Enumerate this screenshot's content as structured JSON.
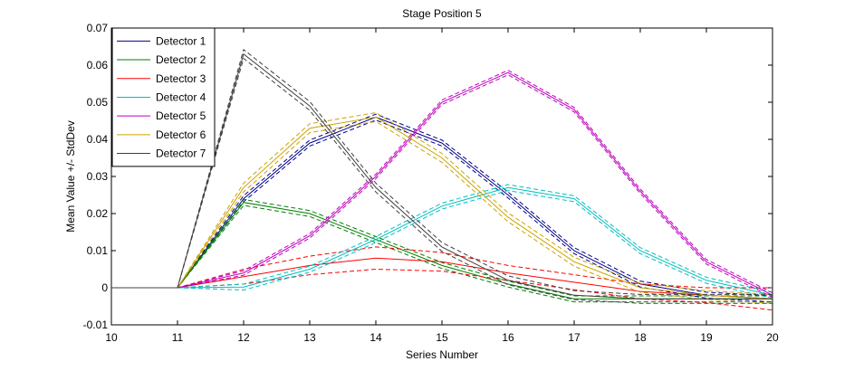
{
  "chart_data": {
    "type": "line",
    "title": "Stage Position 5",
    "xlabel": "Series Number",
    "ylabel": "Mean Value +/- StdDev",
    "xlim": [
      10,
      20
    ],
    "ylim": [
      -0.01,
      0.07
    ],
    "xticks": [
      "10",
      "11",
      "12",
      "13",
      "14",
      "15",
      "16",
      "17",
      "18",
      "19",
      "20"
    ],
    "yticks": [
      "-0.01",
      "0",
      "0.01",
      "0.02",
      "0.03",
      "0.04",
      "0.05",
      "0.06",
      "0.07"
    ],
    "grid": false,
    "legend_position": "top-left",
    "x": [
      10,
      11,
      12,
      13,
      14,
      15,
      16,
      17,
      18,
      19,
      20
    ],
    "series": [
      {
        "name": "Detector 1",
        "color": "#00008b",
        "mean": [
          0,
          0,
          0.024,
          0.039,
          0.046,
          0.039,
          0.025,
          0.01,
          0.001,
          -0.002,
          -0.003
        ],
        "std": [
          0,
          0,
          0.0008,
          0.0008,
          0.0008,
          0.0008,
          0.0008,
          0.0008,
          0.0008,
          0.0008,
          0.0008
        ]
      },
      {
        "name": "Detector 2",
        "color": "#007f00",
        "mean": [
          0,
          0,
          0.023,
          0.02,
          0.013,
          0.006,
          0.001,
          -0.003,
          -0.003,
          -0.003,
          -0.003
        ],
        "std": [
          0,
          0,
          0.0008,
          0.0008,
          0.0008,
          0.0008,
          0.0008,
          0.0008,
          0.0008,
          0.0008,
          0.0008
        ]
      },
      {
        "name": "Detector 3",
        "color": "#ff0000",
        "mean": [
          0,
          0,
          0.003,
          0.006,
          0.008,
          0.007,
          0.004,
          0.0015,
          -0.001,
          -0.002,
          -0.003
        ],
        "std": [
          0,
          0,
          0.002,
          0.0025,
          0.003,
          0.0025,
          0.002,
          0.002,
          0.002,
          0.002,
          0.003
        ]
      },
      {
        "name": "Detector 4",
        "color": "#00bfbf",
        "mean": [
          0,
          0,
          0.0002,
          0.005,
          0.013,
          0.022,
          0.027,
          0.024,
          0.01,
          0.002,
          -0.002
        ],
        "std": [
          0,
          0,
          0.0008,
          0.0008,
          0.0008,
          0.0008,
          0.0008,
          0.0008,
          0.0008,
          0.0008,
          0.0008
        ]
      },
      {
        "name": "Detector 5",
        "color": "#bf00bf",
        "mean": [
          0,
          0,
          0.004,
          0.014,
          0.03,
          0.05,
          0.058,
          0.048,
          0.026,
          0.007,
          -0.002
        ],
        "std": [
          0,
          0,
          0.0006,
          0.0006,
          0.0006,
          0.0006,
          0.0006,
          0.0006,
          0.0006,
          0.0006,
          0.0006
        ]
      },
      {
        "name": "Detector 6",
        "color": "#cca300",
        "mean": [
          0,
          0,
          0.027,
          0.043,
          0.046,
          0.035,
          0.019,
          0.007,
          0.0,
          -0.002,
          -0.003
        ],
        "std": [
          0,
          0,
          0.0012,
          0.0012,
          0.0012,
          0.0012,
          0.0012,
          0.0012,
          0.0012,
          0.0012,
          0.0012
        ]
      },
      {
        "name": "Detector 7",
        "color": "#3f3f3f",
        "mean": [
          0,
          0,
          0.063,
          0.049,
          0.027,
          0.011,
          0.002,
          -0.002,
          -0.003,
          -0.003,
          -0.003
        ],
        "std": [
          0,
          0,
          0.0012,
          0.0012,
          0.0012,
          0.0012,
          0.0012,
          0.0012,
          0.0012,
          0.0012,
          0.0012
        ]
      }
    ]
  }
}
